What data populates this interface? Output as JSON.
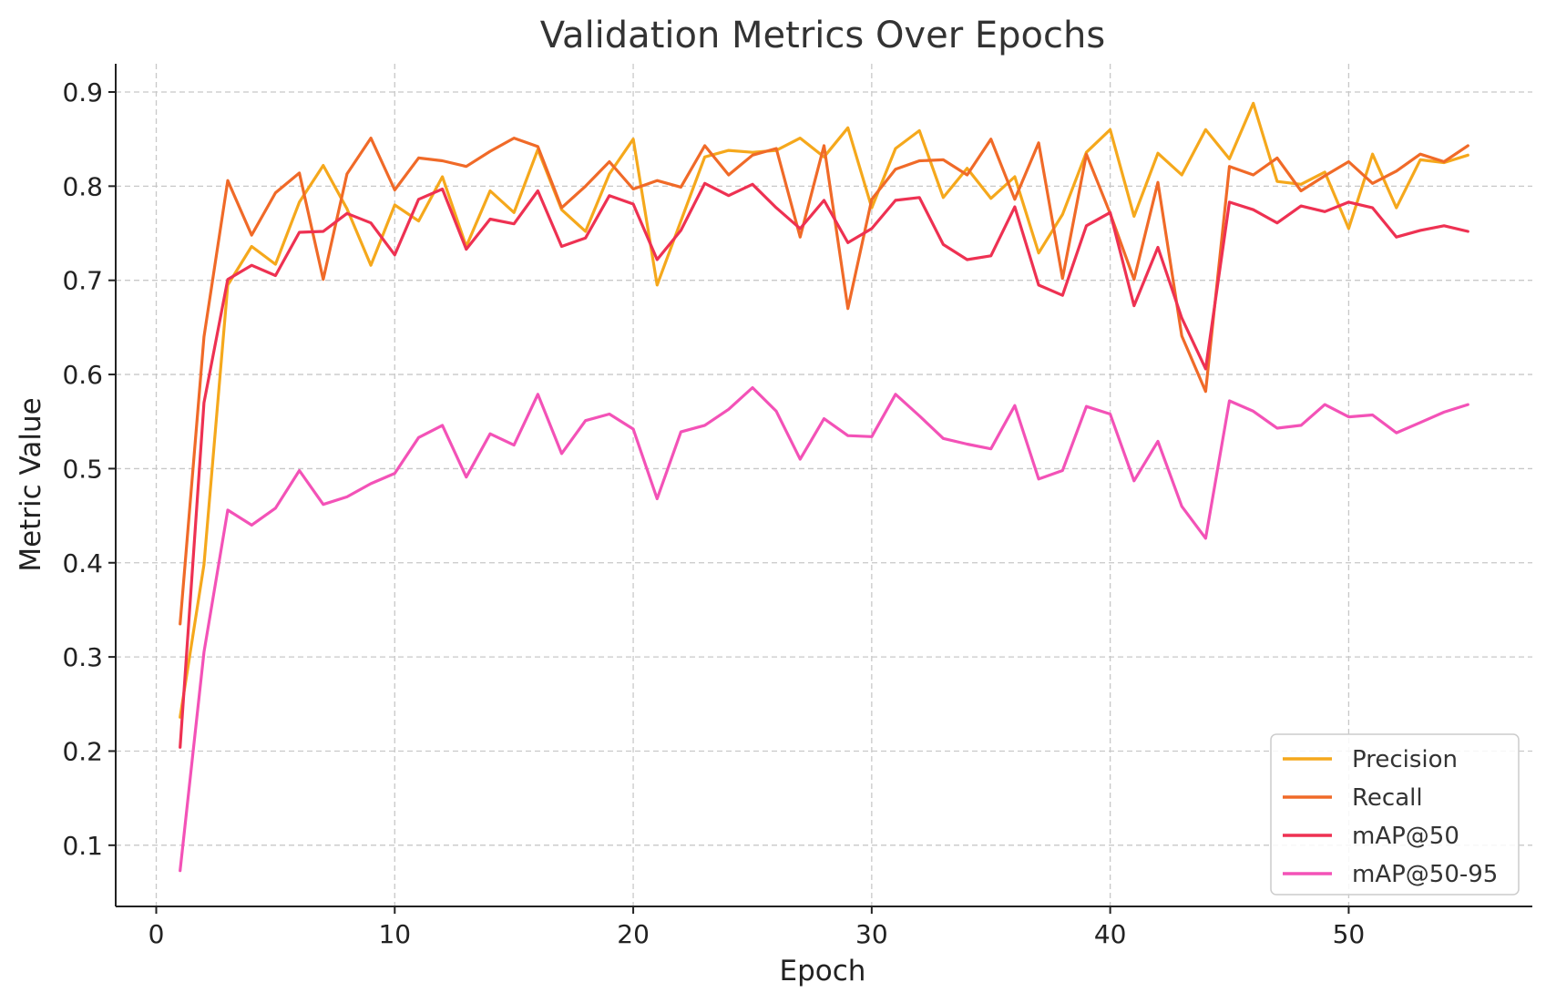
{
  "chart_data": {
    "type": "line",
    "title": "Validation Metrics Over Epochs",
    "xlabel": "Epoch",
    "ylabel": "Metric Value",
    "xlim": [
      -1.7,
      57.7
    ],
    "ylim": [
      0.035,
      0.93
    ],
    "xticks": [
      0,
      10,
      20,
      30,
      40,
      50
    ],
    "yticks": [
      0.1,
      0.2,
      0.3,
      0.4,
      0.5,
      0.6,
      0.7,
      0.8,
      0.9
    ],
    "xtick_labels": [
      "0",
      "10",
      "20",
      "30",
      "40",
      "50"
    ],
    "ytick_labels": [
      "0.1",
      "0.2",
      "0.3",
      "0.4",
      "0.5",
      "0.6",
      "0.7",
      "0.8",
      "0.9"
    ],
    "grid": true,
    "legend_position": "bottom-right",
    "x": [
      1,
      2,
      3,
      4,
      5,
      6,
      7,
      8,
      9,
      10,
      11,
      12,
      13,
      14,
      15,
      16,
      17,
      18,
      19,
      20,
      21,
      22,
      23,
      24,
      25,
      26,
      27,
      28,
      29,
      30,
      31,
      32,
      33,
      34,
      35,
      36,
      37,
      38,
      39,
      40,
      41,
      42,
      43,
      44,
      45,
      46,
      47,
      48,
      49,
      50,
      51,
      52,
      53,
      54,
      55
    ],
    "series": [
      {
        "name": "Precision",
        "color": "#f5a81c",
        "values": [
          0.236,
          0.398,
          0.695,
          0.736,
          0.717,
          0.783,
          0.822,
          0.776,
          0.716,
          0.78,
          0.763,
          0.81,
          0.736,
          0.795,
          0.772,
          0.839,
          0.775,
          0.752,
          0.813,
          0.85,
          0.695,
          0.763,
          0.831,
          0.838,
          0.836,
          0.838,
          0.851,
          0.831,
          0.862,
          0.777,
          0.84,
          0.859,
          0.788,
          0.819,
          0.787,
          0.81,
          0.729,
          0.77,
          0.836,
          0.86,
          0.768,
          0.835,
          0.812,
          0.86,
          0.829,
          0.888,
          0.805,
          0.802,
          0.815,
          0.755,
          0.834,
          0.777,
          0.828,
          0.825,
          0.833
        ]
      },
      {
        "name": "Recall",
        "color": "#f06a28",
        "values": [
          0.335,
          0.64,
          0.806,
          0.748,
          0.793,
          0.814,
          0.701,
          0.813,
          0.851,
          0.796,
          0.83,
          0.827,
          0.821,
          0.837,
          0.851,
          0.842,
          0.777,
          0.8,
          0.826,
          0.797,
          0.806,
          0.799,
          0.843,
          0.812,
          0.833,
          0.84,
          0.746,
          0.843,
          0.67,
          0.786,
          0.818,
          0.827,
          0.828,
          0.812,
          0.85,
          0.786,
          0.846,
          0.702,
          0.834,
          0.771,
          0.701,
          0.804,
          0.641,
          0.582,
          0.821,
          0.812,
          0.83,
          0.795,
          0.811,
          0.826,
          0.803,
          0.816,
          0.834,
          0.826,
          0.843
        ]
      },
      {
        "name": "mAP@50",
        "color": "#ee3152",
        "values": [
          0.204,
          0.57,
          0.701,
          0.716,
          0.705,
          0.751,
          0.752,
          0.771,
          0.761,
          0.727,
          0.786,
          0.797,
          0.733,
          0.765,
          0.76,
          0.795,
          0.736,
          0.745,
          0.79,
          0.781,
          0.722,
          0.753,
          0.803,
          0.79,
          0.802,
          0.777,
          0.755,
          0.785,
          0.74,
          0.755,
          0.785,
          0.788,
          0.738,
          0.722,
          0.726,
          0.778,
          0.695,
          0.684,
          0.758,
          0.772,
          0.673,
          0.735,
          0.66,
          0.606,
          0.783,
          0.775,
          0.761,
          0.779,
          0.773,
          0.783,
          0.777,
          0.746,
          0.753,
          0.758,
          0.752
        ]
      },
      {
        "name": "mAP@50-95",
        "color": "#f352b7",
        "values": [
          0.073,
          0.305,
          0.456,
          0.44,
          0.458,
          0.498,
          0.462,
          0.47,
          0.484,
          0.495,
          0.533,
          0.546,
          0.491,
          0.537,
          0.525,
          0.579,
          0.516,
          0.551,
          0.558,
          0.542,
          0.468,
          0.539,
          0.546,
          0.563,
          0.586,
          0.561,
          0.51,
          0.553,
          0.535,
          0.534,
          0.579,
          0.556,
          0.532,
          0.526,
          0.521,
          0.567,
          0.489,
          0.498,
          0.566,
          0.558,
          0.487,
          0.529,
          0.46,
          0.426,
          0.572,
          0.561,
          0.543,
          0.546,
          0.568,
          0.555,
          0.557,
          0.538,
          0.549,
          0.56,
          0.568
        ]
      }
    ]
  }
}
